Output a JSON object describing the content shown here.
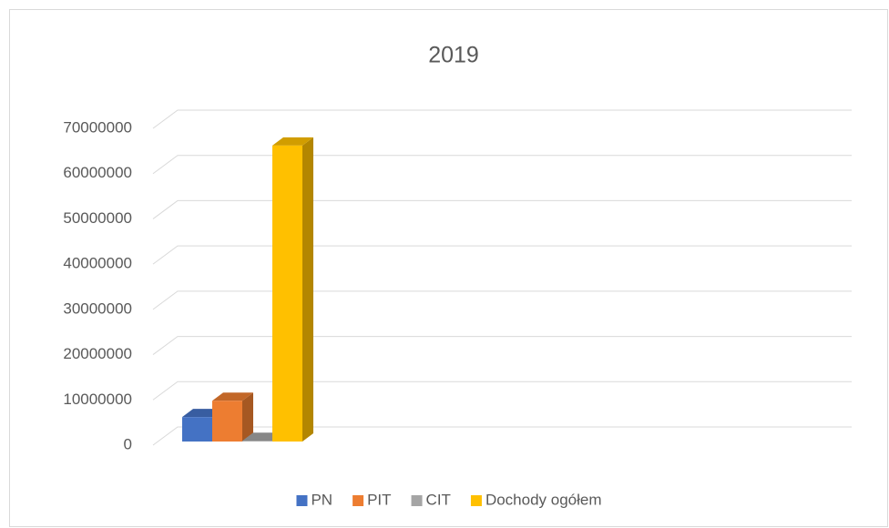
{
  "chart_data": {
    "type": "bar3d",
    "title": "2019",
    "categories": [
      null
    ],
    "series": [
      {
        "name": "PN",
        "color": "#4472c4",
        "values": [
          5400000
        ]
      },
      {
        "name": "PIT",
        "color": "#ed7d31",
        "values": [
          9000000
        ]
      },
      {
        "name": "CIT",
        "color": "#a5a5a5",
        "values": [
          150000
        ]
      },
      {
        "name": "Dochody ogółem",
        "color": "#ffc000",
        "values": [
          65400000
        ]
      }
    ],
    "ylim": [
      0,
      70000000
    ],
    "yticks": [
      0,
      10000000,
      20000000,
      30000000,
      40000000,
      50000000,
      60000000,
      70000000
    ],
    "grid": true,
    "legend": "bottom"
  }
}
